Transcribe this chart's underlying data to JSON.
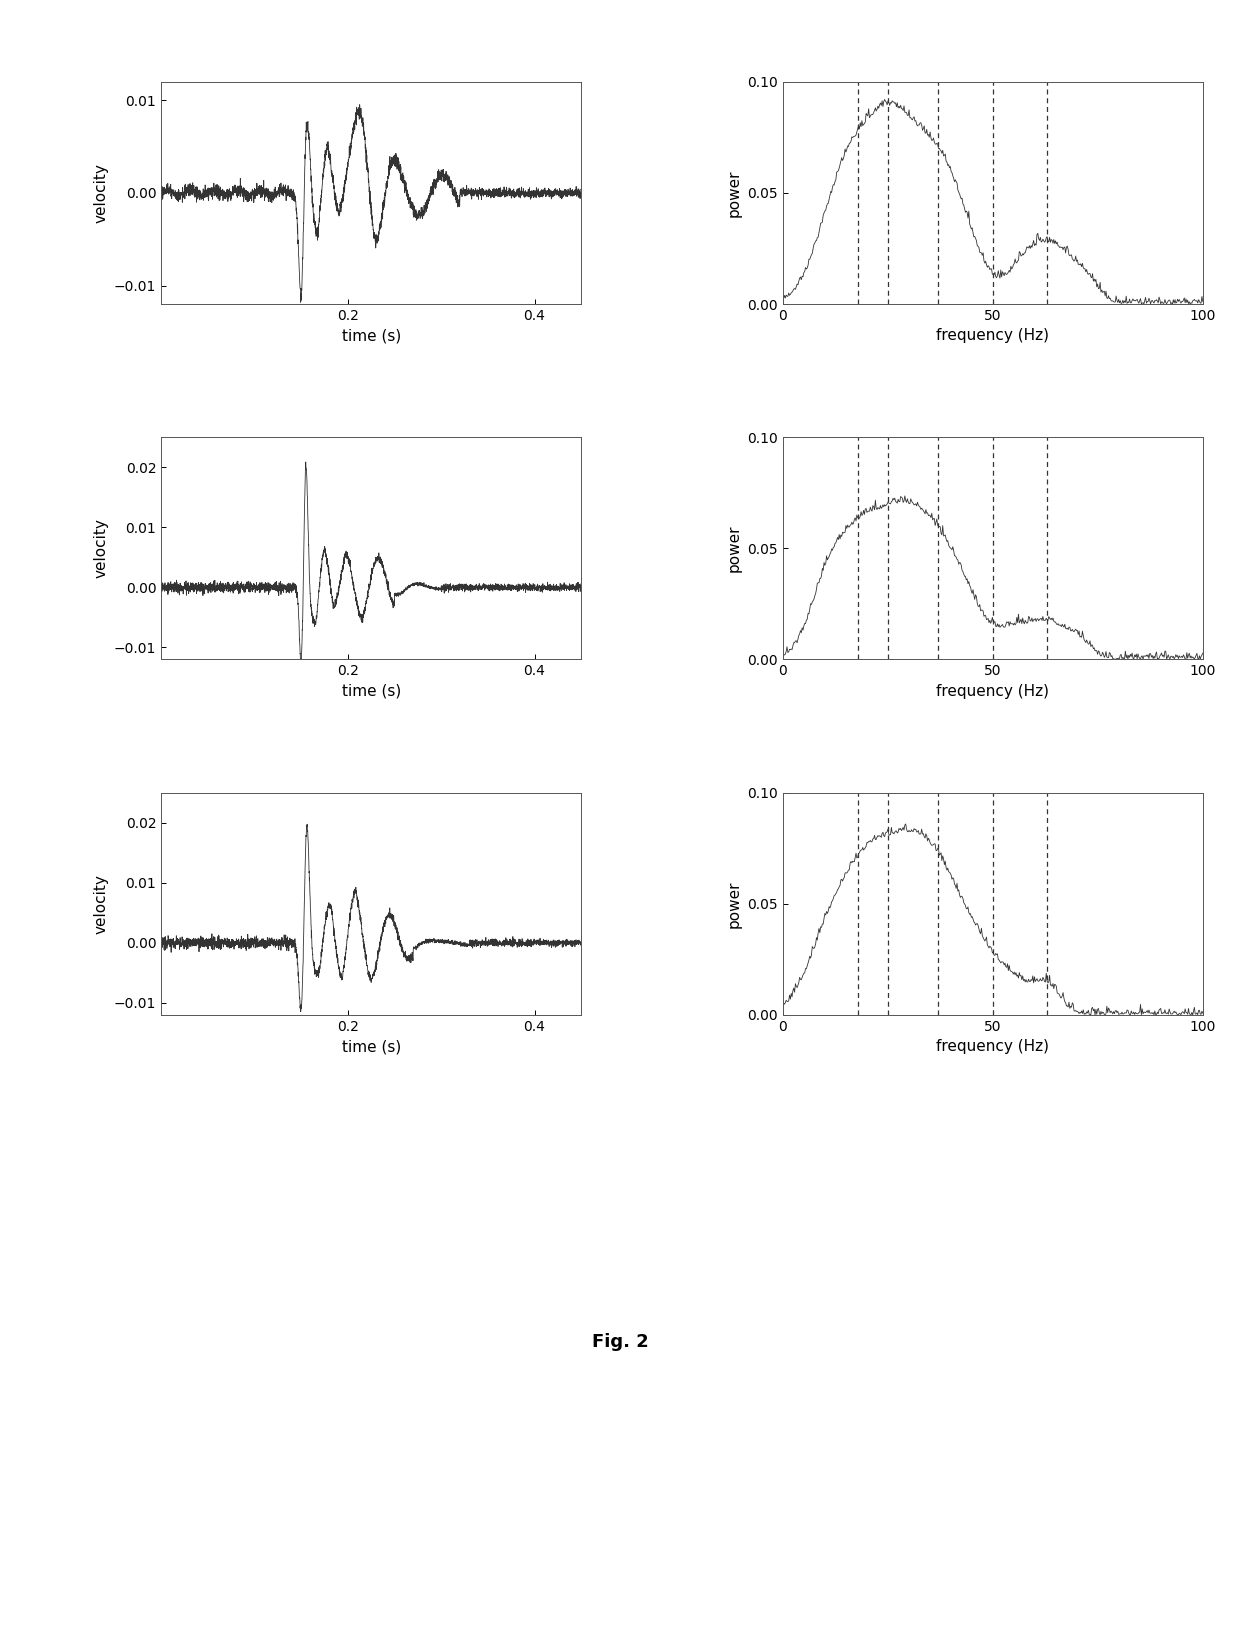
{
  "fig_caption": "Fig. 2",
  "background_color": "#ffffff",
  "time_xlim": [
    0,
    0.45
  ],
  "time_xticks": [
    0.2,
    0.4
  ],
  "freq_xlim": [
    0,
    100
  ],
  "freq_xticks": [
    0,
    50,
    100
  ],
  "freq_ylim": [
    0,
    0.1
  ],
  "freq_yticks": [
    0,
    0.05,
    0.1
  ],
  "vlines_row0": [
    18,
    25,
    37,
    50,
    63
  ],
  "vlines_row1": [
    18,
    25,
    37,
    50,
    63
  ],
  "vlines_row2": [
    18,
    25,
    37,
    50,
    63
  ],
  "rows": [
    {
      "vel_ylim": [
        -0.012,
        0.012
      ],
      "vel_yticks": [
        0.01,
        0,
        -0.01
      ],
      "impact_time": 0.15
    },
    {
      "vel_ylim": [
        -0.012,
        0.025
      ],
      "vel_yticks": [
        0.02,
        0.01,
        0,
        -0.01
      ],
      "impact_time": 0.15
    },
    {
      "vel_ylim": [
        -0.012,
        0.025
      ],
      "vel_yticks": [
        0.02,
        0.01,
        0,
        -0.01
      ],
      "impact_time": 0.15
    }
  ],
  "line_color": "#333333",
  "dash_color": "#333333",
  "font_size_label": 11,
  "font_size_tick": 10,
  "font_size_caption": 13
}
